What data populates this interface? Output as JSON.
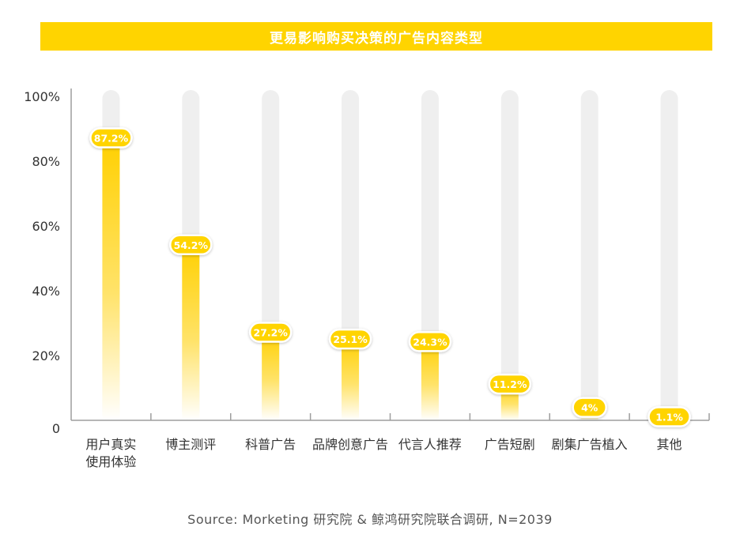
{
  "title": "更易影响购买决策的广告内容类型",
  "source": "Source: Morketing 研究院 & 鲸鸿研究院联合调研, N=2039",
  "colors": {
    "accent": "#FFD400",
    "track": "#EFEFEF",
    "axis": "#9E9E9E",
    "text": "#333333"
  },
  "chart_data": {
    "type": "bar",
    "categories": [
      [
        "用户真实",
        "使用体验"
      ],
      [
        "博主测评"
      ],
      [
        "科普广告"
      ],
      [
        "品牌创意广告"
      ],
      [
        "代言人推荐"
      ],
      [
        "广告短剧"
      ],
      [
        "剧集广告植入"
      ],
      [
        "其他"
      ]
    ],
    "values": [
      87.2,
      54.2,
      27.2,
      25.1,
      24.3,
      11.2,
      4,
      1.1
    ],
    "data_labels": [
      "87.2%",
      "54.2%",
      "27.2%",
      "25.1%",
      "24.3%",
      "11.2%",
      "4%",
      "1.1%"
    ],
    "y_ticks": [
      {
        "value": 0,
        "label": "0"
      },
      {
        "value": 20,
        "label": "20%"
      },
      {
        "value": 40,
        "label": "40%"
      },
      {
        "value": 60,
        "label": "60%"
      },
      {
        "value": 80,
        "label": "80%"
      },
      {
        "value": 100,
        "label": "100%"
      }
    ],
    "ylim": [
      0,
      100
    ],
    "grid": false,
    "legend": "none"
  }
}
